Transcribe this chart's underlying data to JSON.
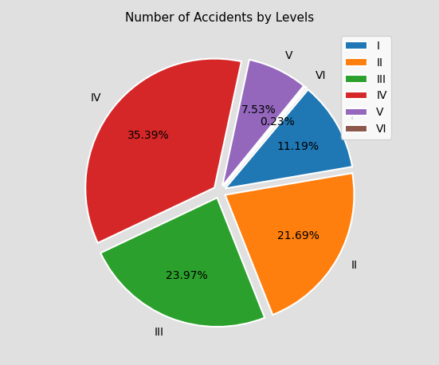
{
  "title": "Number of Accidents by Levels",
  "labels": [
    "I",
    "II",
    "III",
    "IV",
    "V",
    "VI"
  ],
  "percentages": [
    11.19,
    21.69,
    23.97,
    35.39,
    7.53,
    0.23
  ],
  "colors": [
    "#1f77b4",
    "#ff7f0e",
    "#2ca02c",
    "#d62728",
    "#9467bd",
    "#8c564b"
  ],
  "explode": [
    0.05,
    0.05,
    0.05,
    0.05,
    0.05,
    0.05
  ],
  "background_color": "#e0e0e0",
  "startangle": 50,
  "legend_loc": "upper right",
  "pctdistance": 0.65,
  "labeldistance": 1.12
}
